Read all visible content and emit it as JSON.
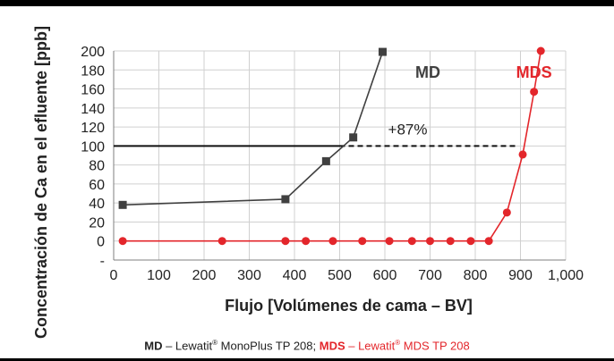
{
  "chart_data": {
    "type": "line",
    "xlabel": "Flujo [Volúmenes de cama – BV]",
    "ylabel": "Concentración de Ca en el efluente [ppb]",
    "xlim": [
      0,
      1000
    ],
    "ylim": [
      -20,
      200
    ],
    "x_ticks": [
      0,
      100,
      200,
      300,
      400,
      500,
      600,
      700,
      800,
      900,
      1000
    ],
    "x_tick_labels": [
      "0",
      "100",
      "200",
      "300",
      "400",
      "500",
      "600",
      "700",
      "800",
      "900",
      "1,000"
    ],
    "y_ticks": [
      -20,
      0,
      20,
      40,
      60,
      80,
      100,
      120,
      140,
      160,
      180,
      200
    ],
    "y_tick_labels": [
      "-",
      "0",
      "20",
      "40",
      "60",
      "80",
      "100",
      "120",
      "140",
      "160",
      "180",
      "200"
    ],
    "grid": true,
    "series": [
      {
        "name": "MD",
        "color": "#404040",
        "marker": "square",
        "x": [
          20,
          380,
          470,
          530,
          595
        ],
        "y": [
          38,
          44,
          84,
          109,
          199
        ]
      },
      {
        "name": "MDS",
        "color": "#e3262b",
        "marker": "circle",
        "x": [
          20,
          240,
          380,
          425,
          485,
          550,
          610,
          660,
          700,
          745,
          790,
          830,
          870,
          905,
          930,
          945
        ],
        "y": [
          0,
          0,
          0,
          0,
          0,
          0,
          0,
          0,
          0,
          0,
          0,
          0,
          30,
          91,
          157,
          200
        ]
      }
    ],
    "reference_lines": {
      "solid": {
        "y": 100,
        "x_from": 0,
        "x_to": 500
      },
      "dashed": {
        "y": 100,
        "x_from": 500,
        "x_to": 895
      }
    },
    "annotations": [
      {
        "text": "+87%",
        "x": 700,
        "y": 112
      }
    ],
    "series_labels": [
      {
        "text": "MD",
        "x": 695,
        "y": 172,
        "color": "#404040"
      },
      {
        "text": "MDS",
        "x": 930,
        "y": 172,
        "color": "#e3262b"
      }
    ]
  },
  "caption": {
    "md_bold": "MD",
    "md_text": " – Lewatit",
    "reg": "®",
    "md_product": " MonoPlus TP 208; ",
    "mds_bold": "MDS",
    "mds_text": " – Lewatit",
    "mds_product": " MDS TP 208"
  }
}
